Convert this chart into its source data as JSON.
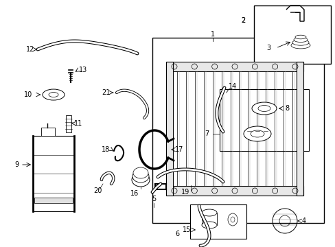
{
  "bg_color": "#ffffff",
  "fig_w": 4.89,
  "fig_h": 3.6,
  "dpi": 100
}
